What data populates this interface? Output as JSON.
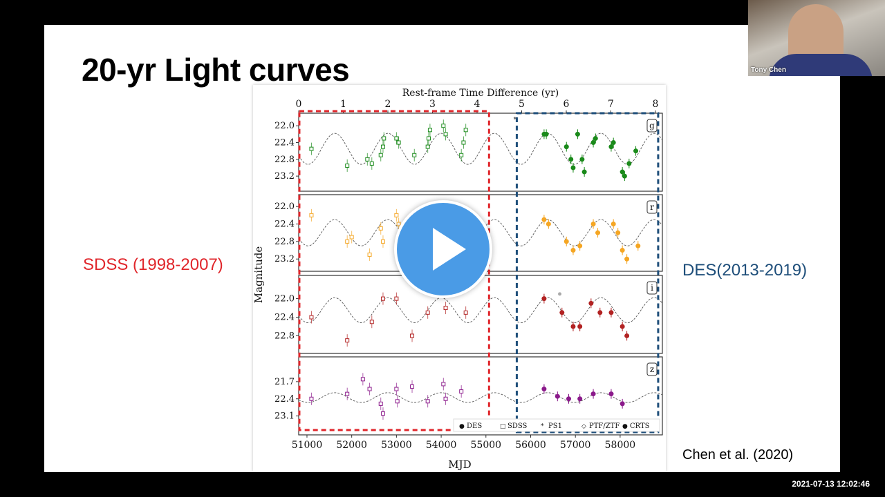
{
  "slide": {
    "title": "20-yr Light curves",
    "sdss_label": "SDSS (1998-2007)",
    "des_label": "DES(2013-2019)",
    "citation": "Chen et al. (2020)"
  },
  "video": {
    "speaker_name": "Tony Chen",
    "timestamp": "2021-07-13 12:02:46",
    "play_icon": "play-icon"
  },
  "colors": {
    "sdss_box": "#e0262b",
    "des_box": "#1e4e7a",
    "g": "#1a8a1a",
    "r": "#f5a623",
    "i": "#b22222",
    "z": "#8b1a8b",
    "play": "#4a9be6"
  },
  "chart_data": {
    "type": "scatter",
    "title": "",
    "xlabel": "MJD",
    "top_xlabel": "Rest-frame Time Difference (yr)",
    "ylabel": "Magnitude",
    "xlim": [
      50815,
      58944
    ],
    "x_ticks": [
      "51000",
      "52000",
      "53000",
      "54000",
      "55000",
      "56000",
      "57000",
      "58000"
    ],
    "top_x_ticks": [
      "0",
      "1",
      "2",
      "3",
      "4",
      "5",
      "6",
      "7",
      "8"
    ],
    "y_inverted": true,
    "legend": {
      "placement": "bottom-right",
      "entries": [
        "DES",
        "SDSS",
        "PS1",
        "PTF/ZTF",
        "CRTS"
      ]
    },
    "regions": [
      {
        "name": "SDSS",
        "mjd": [
          50830,
          55070
        ]
      },
      {
        "name": "DES",
        "mjd": [
          55690,
          58850
        ]
      }
    ],
    "model": {
      "period_days": 1190,
      "peak_mjd": 52810
    },
    "panels": [
      {
        "band": "g",
        "ylim": [
          21.7,
          23.56
        ],
        "y_ticks": [
          "22.0",
          "22.4",
          "22.8",
          "23.2"
        ],
        "model_mean": 22.55,
        "model_amp": 0.37,
        "sdss": [
          [
            51100,
            22.55
          ],
          [
            51900,
            22.95
          ],
          [
            52350,
            22.8
          ],
          [
            52450,
            22.9
          ],
          [
            52650,
            22.7
          ],
          [
            52700,
            22.5
          ],
          [
            52720,
            22.3
          ],
          [
            53000,
            22.3
          ],
          [
            53050,
            22.4
          ],
          [
            53400,
            22.7
          ],
          [
            53700,
            22.5
          ],
          [
            53720,
            22.3
          ],
          [
            53750,
            22.1
          ],
          [
            54050,
            22.0
          ],
          [
            54100,
            22.2
          ],
          [
            54450,
            22.7
          ],
          [
            54500,
            22.4
          ],
          [
            54550,
            22.1
          ]
        ],
        "des": [
          [
            56300,
            22.2
          ],
          [
            56350,
            22.2
          ],
          [
            56800,
            22.5
          ],
          [
            56900,
            22.8
          ],
          [
            56950,
            23.0
          ],
          [
            57050,
            22.2
          ],
          [
            57150,
            22.8
          ],
          [
            57200,
            23.1
          ],
          [
            57400,
            22.4
          ],
          [
            57450,
            22.3
          ],
          [
            57800,
            22.5
          ],
          [
            57850,
            22.4
          ],
          [
            58050,
            23.1
          ],
          [
            58100,
            23.2
          ],
          [
            58200,
            22.9
          ],
          [
            58350,
            22.6
          ]
        ],
        "ps1": [
          [
            55650,
            21.85
          ]
        ],
        "crts": []
      },
      {
        "band": "r",
        "ylim": [
          21.73,
          23.48
        ],
        "y_ticks": [
          "22.0",
          "22.4",
          "22.8",
          "23.2"
        ],
        "model_mean": 22.6,
        "model_amp": 0.3,
        "sdss": [
          [
            51100,
            22.2
          ],
          [
            51900,
            22.8
          ],
          [
            52000,
            22.7
          ],
          [
            52400,
            23.1
          ],
          [
            52650,
            22.5
          ],
          [
            52700,
            22.8
          ],
          [
            53000,
            22.2
          ],
          [
            53050,
            22.4
          ]
        ],
        "des": [
          [
            56300,
            22.3
          ],
          [
            56400,
            22.4
          ],
          [
            56800,
            22.8
          ],
          [
            56950,
            23.0
          ],
          [
            57100,
            22.9
          ],
          [
            57400,
            22.4
          ],
          [
            57500,
            22.6
          ],
          [
            57850,
            22.4
          ],
          [
            57950,
            22.6
          ],
          [
            58050,
            23.0
          ],
          [
            58150,
            23.2
          ],
          [
            58400,
            22.9
          ]
        ],
        "ps1": [],
        "crts": []
      },
      {
        "band": "i",
        "ylim": [
          21.5,
          23.18
        ],
        "y_ticks": [
          "22.0",
          "22.4",
          "22.8"
        ],
        "model_mean": 22.25,
        "model_amp": 0.27,
        "sdss": [
          [
            51100,
            22.4
          ],
          [
            51900,
            22.9
          ],
          [
            52450,
            22.5
          ],
          [
            52700,
            22.0
          ],
          [
            53000,
            22.0
          ],
          [
            53350,
            22.8
          ],
          [
            53700,
            22.3
          ],
          [
            54100,
            22.2
          ],
          [
            54550,
            22.3
          ]
        ],
        "des": [
          [
            56300,
            22.0
          ],
          [
            56700,
            22.3
          ],
          [
            56950,
            22.6
          ],
          [
            57100,
            22.6
          ],
          [
            57350,
            22.1
          ],
          [
            57550,
            22.3
          ],
          [
            57800,
            22.3
          ],
          [
            58050,
            22.6
          ],
          [
            58150,
            22.8
          ]
        ],
        "ps1": [],
        "crts": [
          [
            56650,
            21.9
          ]
        ]
      },
      {
        "band": "z",
        "ylim": [
          20.69,
          23.87
        ],
        "y_ticks": [
          "21.7",
          "22.4",
          "23.1"
        ],
        "model_mean": 22.35,
        "model_amp": 0.2,
        "sdss": [
          [
            51100,
            22.4
          ],
          [
            51900,
            22.2
          ],
          [
            52250,
            21.6
          ],
          [
            52400,
            22.0
          ],
          [
            52650,
            22.6
          ],
          [
            52700,
            23.0
          ],
          [
            53000,
            22.0
          ],
          [
            53020,
            22.5
          ],
          [
            53350,
            21.9
          ],
          [
            53700,
            22.5
          ],
          [
            54050,
            21.8
          ],
          [
            54100,
            22.4
          ],
          [
            54450,
            22.1
          ]
        ],
        "des": [
          [
            56300,
            22.0
          ],
          [
            56600,
            22.3
          ],
          [
            56850,
            22.4
          ],
          [
            57100,
            22.4
          ],
          [
            57400,
            22.2
          ],
          [
            57800,
            22.2
          ],
          [
            58050,
            22.6
          ]
        ],
        "ps1": [],
        "crts": []
      }
    ]
  }
}
